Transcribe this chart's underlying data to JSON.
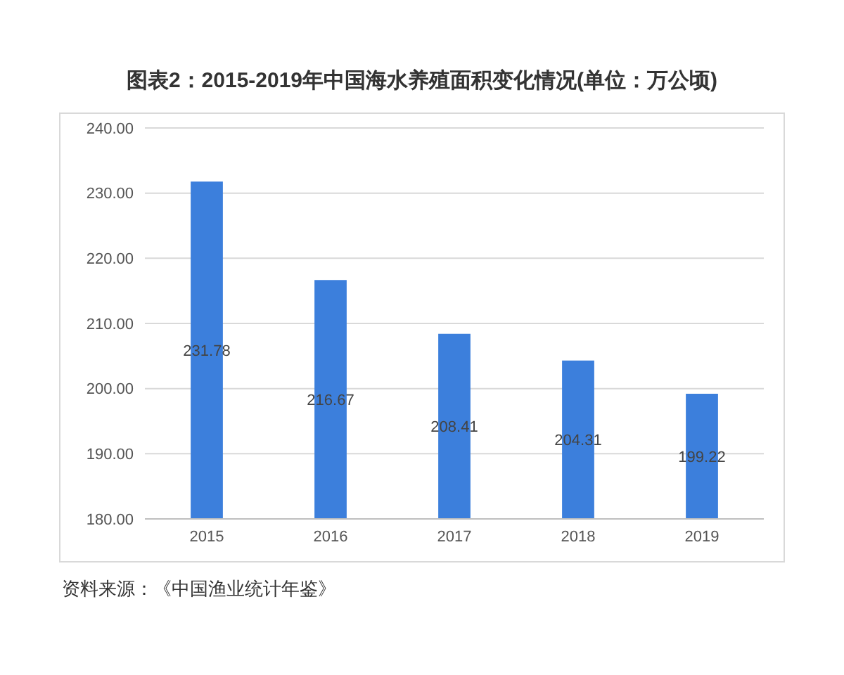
{
  "chart_data": {
    "type": "bar",
    "title": "图表2：2015-2019年中国海水养殖面积变化情况(单位：万公顷)",
    "categories": [
      "2015",
      "2016",
      "2017",
      "2018",
      "2019"
    ],
    "values": [
      231.78,
      216.67,
      208.41,
      204.31,
      199.22
    ],
    "color": "#3c7fdc",
    "ylim": [
      180,
      240
    ],
    "yticks": [
      {
        "value": 180,
        "label": "180.00"
      },
      {
        "value": 190,
        "label": "190.00"
      },
      {
        "value": 200,
        "label": "200.00"
      },
      {
        "value": 210,
        "label": "210.00"
      },
      {
        "value": 220,
        "label": "220.00"
      },
      {
        "value": 230,
        "label": "230.00"
      },
      {
        "value": 240,
        "label": "240.00"
      }
    ],
    "grid": "y",
    "data_labels": true,
    "annotations": [
      "资料来源：《中国渔业统计年鉴》"
    ]
  }
}
